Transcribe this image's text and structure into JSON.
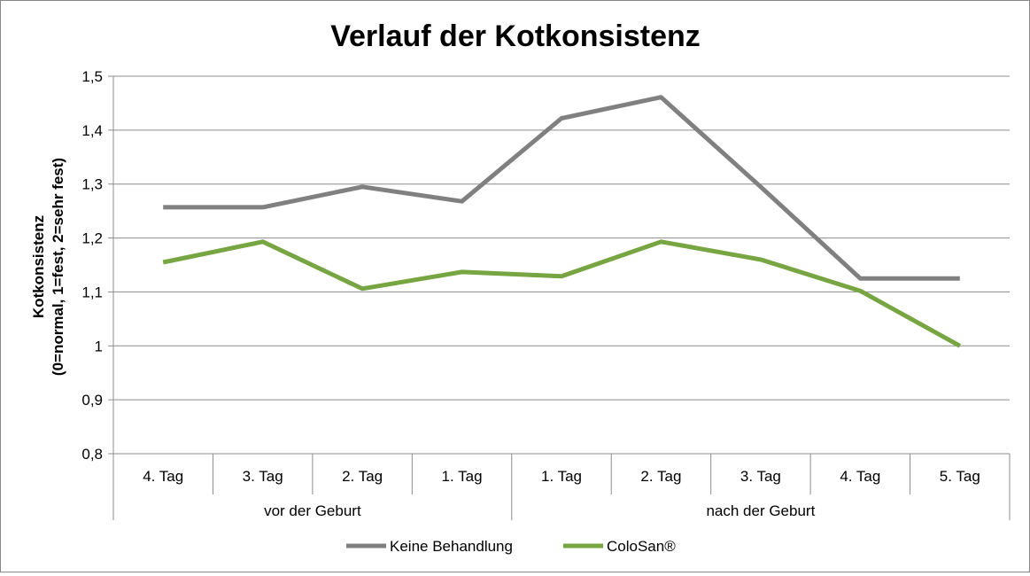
{
  "chart_data": {
    "type": "line",
    "title": "Verlauf der Kotkonsistenz",
    "ylabel_lines": [
      "Kotkonsistenz",
      "(0=normal, 1=fest, 2=sehr fest)"
    ],
    "ylim": [
      0.8,
      1.5
    ],
    "yticks": [
      {
        "value": 0.8,
        "label": "0,8"
      },
      {
        "value": 0.9,
        "label": "0,9"
      },
      {
        "value": 1.0,
        "label": "1"
      },
      {
        "value": 1.1,
        "label": "1,1"
      },
      {
        "value": 1.2,
        "label": "1,2"
      },
      {
        "value": 1.3,
        "label": "1,3"
      },
      {
        "value": 1.4,
        "label": "1,4"
      },
      {
        "value": 1.5,
        "label": "1,5"
      }
    ],
    "categories": [
      "4. Tag",
      "3. Tag",
      "2. Tag",
      "1. Tag",
      "1. Tag",
      "2. Tag",
      "3. Tag",
      "4. Tag",
      "5. Tag"
    ],
    "groups": [
      {
        "label": "vor der Geburt",
        "count": 4
      },
      {
        "label": "nach der Geburt",
        "count": 5
      }
    ],
    "grid": true,
    "legend_position": "bottom",
    "series": [
      {
        "name": "Keine Behandlung",
        "color": "#808080",
        "values": [
          1.257,
          1.257,
          1.295,
          1.268,
          1.422,
          1.461,
          1.295,
          1.125,
          1.125
        ]
      },
      {
        "name": "ColoSan®",
        "color": "#77A541",
        "values": [
          1.155,
          1.193,
          1.106,
          1.137,
          1.129,
          1.193,
          1.16,
          1.102,
          1.0
        ]
      }
    ]
  }
}
